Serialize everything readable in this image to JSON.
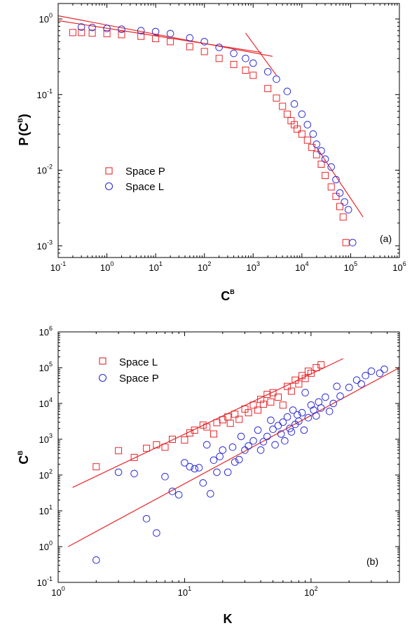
{
  "colors": {
    "red": "#e8262a",
    "blue": "#2b2bd6",
    "axis": "#000000"
  },
  "chart_data": [
    {
      "type": "scatter",
      "panel_label": "(a)",
      "xlabel": {
        "base": "C",
        "sup": "B"
      },
      "ylabel": {
        "prefix": "P",
        "open": "(",
        "base": "C",
        "sup": "B",
        "close": ")"
      },
      "x_scale": "log",
      "y_scale": "log",
      "xlim": [
        0.1,
        1000000
      ],
      "ylim": [
        0.0007,
        1.6
      ],
      "x_ticks": [
        {
          "m": "10",
          "e": "-1",
          "v": 0.1
        },
        {
          "m": "10",
          "e": "0",
          "v": 1
        },
        {
          "m": "10",
          "e": "1",
          "v": 10
        },
        {
          "m": "10",
          "e": "2",
          "v": 100
        },
        {
          "m": "10",
          "e": "3",
          "v": 1000
        },
        {
          "m": "10",
          "e": "4",
          "v": 10000
        },
        {
          "m": "10",
          "e": "5",
          "v": 100000
        },
        {
          "m": "10",
          "e": "6",
          "v": 1000000
        }
      ],
      "y_ticks": [
        {
          "m": "10",
          "e": "-3",
          "v": 0.001
        },
        {
          "m": "10",
          "e": "-2",
          "v": 0.01
        },
        {
          "m": "10",
          "e": "-1",
          "v": 0.1
        },
        {
          "m": "10",
          "e": "0",
          "v": 1
        }
      ],
      "grid": false,
      "legend_position": "middle-left",
      "series": [
        {
          "name": "Space P",
          "color": "red",
          "marker": "square",
          "points": [
            [
              0.2,
              0.66
            ],
            [
              0.3,
              0.66
            ],
            [
              0.5,
              0.65
            ],
            [
              1,
              0.64
            ],
            [
              2,
              0.62
            ],
            [
              5,
              0.59
            ],
            [
              10,
              0.55
            ],
            [
              20,
              0.5
            ],
            [
              50,
              0.43
            ],
            [
              100,
              0.37
            ],
            [
              200,
              0.3
            ],
            [
              400,
              0.25
            ],
            [
              700,
              0.21
            ],
            [
              1000,
              0.18
            ],
            [
              2000,
              0.12
            ],
            [
              3000,
              0.09
            ],
            [
              4000,
              0.07
            ],
            [
              5000,
              0.055
            ],
            [
              6000,
              0.045
            ],
            [
              7000,
              0.04
            ],
            [
              8000,
              0.035
            ],
            [
              10000,
              0.03
            ],
            [
              13000,
              0.025
            ],
            [
              16000,
              0.02
            ],
            [
              20000,
              0.016
            ],
            [
              25000,
              0.012
            ],
            [
              30000,
              0.0085
            ],
            [
              40000,
              0.006
            ],
            [
              50000,
              0.0045
            ],
            [
              60000,
              0.0033
            ],
            [
              70000,
              0.0024
            ],
            [
              80000,
              0.0011
            ]
          ]
        },
        {
          "name": "Space L",
          "color": "blue",
          "marker": "circle",
          "points": [
            [
              0.3,
              0.78
            ],
            [
              0.5,
              0.77
            ],
            [
              1,
              0.75
            ],
            [
              2,
              0.73
            ],
            [
              5,
              0.7
            ],
            [
              10,
              0.68
            ],
            [
              20,
              0.64
            ],
            [
              50,
              0.56
            ],
            [
              100,
              0.5
            ],
            [
              200,
              0.42
            ],
            [
              400,
              0.35
            ],
            [
              700,
              0.3
            ],
            [
              1000,
              0.26
            ],
            [
              2000,
              0.2
            ],
            [
              3000,
              0.16
            ],
            [
              5000,
              0.11
            ],
            [
              7000,
              0.075
            ],
            [
              10000,
              0.055
            ],
            [
              13000,
              0.04
            ],
            [
              17000,
              0.03
            ],
            [
              20000,
              0.022
            ],
            [
              25000,
              0.018
            ],
            [
              30000,
              0.014
            ],
            [
              40000,
              0.011
            ],
            [
              50000,
              0.0075
            ],
            [
              60000,
              0.005
            ],
            [
              75000,
              0.0038
            ],
            [
              90000,
              0.003
            ],
            [
              110000,
              0.0011
            ]
          ]
        }
      ],
      "fit_lines": [
        {
          "from": [
            0.1,
            1.1
          ],
          "to": [
            2500,
            0.32
          ]
        },
        {
          "from": [
            0.1,
            0.95
          ],
          "to": [
            1500,
            0.36
          ]
        },
        {
          "from": [
            700,
            0.65
          ],
          "to": [
            3000,
            0.18
          ]
        },
        {
          "from": [
            20000,
            0.02
          ],
          "to": [
            180000,
            0.0024
          ]
        }
      ]
    },
    {
      "type": "scatter",
      "panel_label": "(b)",
      "xlabel": {
        "base": "K",
        "sup": ""
      },
      "ylabel": {
        "base": "C",
        "sup": "B"
      },
      "x_scale": "log",
      "y_scale": "log",
      "xlim": [
        1,
        500
      ],
      "ylim": [
        0.1,
        1000000
      ],
      "x_ticks": [
        {
          "m": "10",
          "e": "0",
          "v": 1
        },
        {
          "m": "10",
          "e": "1",
          "v": 10
        },
        {
          "m": "10",
          "e": "2",
          "v": 100
        }
      ],
      "y_ticks": [
        {
          "m": "10",
          "e": "-1",
          "v": 0.1
        },
        {
          "m": "10",
          "e": "0",
          "v": 1
        },
        {
          "m": "10",
          "e": "1",
          "v": 10
        },
        {
          "m": "10",
          "e": "2",
          "v": 100
        },
        {
          "m": "10",
          "e": "3",
          "v": 1000
        },
        {
          "m": "10",
          "e": "4",
          "v": 10000
        },
        {
          "m": "10",
          "e": "5",
          "v": 100000
        },
        {
          "m": "10",
          "e": "6",
          "v": 1000000
        }
      ],
      "grid": false,
      "legend_position": "top-left",
      "series": [
        {
          "name": "Space L",
          "color": "red",
          "marker": "square",
          "points": [
            [
              2,
              170
            ],
            [
              3,
              480
            ],
            [
              4,
              310
            ],
            [
              5,
              560
            ],
            [
              6,
              700
            ],
            [
              7,
              600
            ],
            [
              8,
              1000
            ],
            [
              10,
              950
            ],
            [
              11,
              1500
            ],
            [
              12,
              1800
            ],
            [
              14,
              2500
            ],
            [
              15,
              2200
            ],
            [
              17,
              1400
            ],
            [
              18,
              2900
            ],
            [
              20,
              3500
            ],
            [
              22,
              4200
            ],
            [
              23,
              2800
            ],
            [
              25,
              5000
            ],
            [
              27,
              3600
            ],
            [
              30,
              7000
            ],
            [
              32,
              5500
            ],
            [
              35,
              9000
            ],
            [
              38,
              6500
            ],
            [
              40,
              13000
            ],
            [
              42,
              9500
            ],
            [
              45,
              18000
            ],
            [
              48,
              11000
            ],
            [
              50,
              20000
            ],
            [
              55,
              15000
            ],
            [
              60,
              9000
            ],
            [
              65,
              30000
            ],
            [
              70,
              22000
            ],
            [
              75,
              45000
            ],
            [
              80,
              35000
            ],
            [
              85,
              60000
            ],
            [
              90,
              50000
            ],
            [
              95,
              80000
            ],
            [
              100,
              70000
            ],
            [
              110,
              100000
            ],
            [
              120,
              120000
            ]
          ]
        },
        {
          "name": "Space P",
          "color": "blue",
          "marker": "circle",
          "points": [
            [
              2,
              0.42
            ],
            [
              3,
              120
            ],
            [
              4,
              110
            ],
            [
              5,
              6
            ],
            [
              6,
              2.4
            ],
            [
              7,
              90
            ],
            [
              8,
              35
            ],
            [
              9,
              28
            ],
            [
              10,
              220
            ],
            [
              11,
              170
            ],
            [
              12,
              150
            ],
            [
              13,
              160
            ],
            [
              14,
              60
            ],
            [
              15,
              700
            ],
            [
              16,
              30
            ],
            [
              17,
              260
            ],
            [
              18,
              120
            ],
            [
              19,
              330
            ],
            [
              20,
              500
            ],
            [
              22,
              120
            ],
            [
              24,
              600
            ],
            [
              25,
              230
            ],
            [
              27,
              270
            ],
            [
              28,
              1200
            ],
            [
              30,
              500
            ],
            [
              32,
              650
            ],
            [
              35,
              900
            ],
            [
              38,
              1800
            ],
            [
              40,
              500
            ],
            [
              42,
              850
            ],
            [
              45,
              1200
            ],
            [
              48,
              3400
            ],
            [
              50,
              1900
            ],
            [
              52,
              700
            ],
            [
              55,
              2400
            ],
            [
              58,
              1400
            ],
            [
              60,
              3000
            ],
            [
              62,
              900
            ],
            [
              65,
              4200
            ],
            [
              68,
              2000
            ],
            [
              70,
              1600
            ],
            [
              72,
              6500
            ],
            [
              75,
              2600
            ],
            [
              78,
              4800
            ],
            [
              80,
              3200
            ],
            [
              85,
              5500
            ],
            [
              88,
              1800
            ],
            [
              90,
              20000
            ],
            [
              95,
              4000
            ],
            [
              100,
              9000
            ],
            [
              105,
              6500
            ],
            [
              110,
              4500
            ],
            [
              115,
              11000
            ],
            [
              120,
              7500
            ],
            [
              130,
              15000
            ],
            [
              140,
              6000
            ],
            [
              150,
              10000
            ],
            [
              160,
              30000
            ],
            [
              170,
              16000
            ],
            [
              200,
              28000
            ],
            [
              230,
              45000
            ],
            [
              250,
              35000
            ],
            [
              270,
              60000
            ],
            [
              300,
              80000
            ],
            [
              350,
              70000
            ],
            [
              380,
              90000
            ]
          ]
        }
      ],
      "fit_lines": [
        {
          "from": [
            1.3,
            45
          ],
          "to": [
            180,
            180000
          ]
        },
        {
          "from": [
            1.2,
            1
          ],
          "to": [
            500,
            100000
          ]
        }
      ]
    }
  ]
}
